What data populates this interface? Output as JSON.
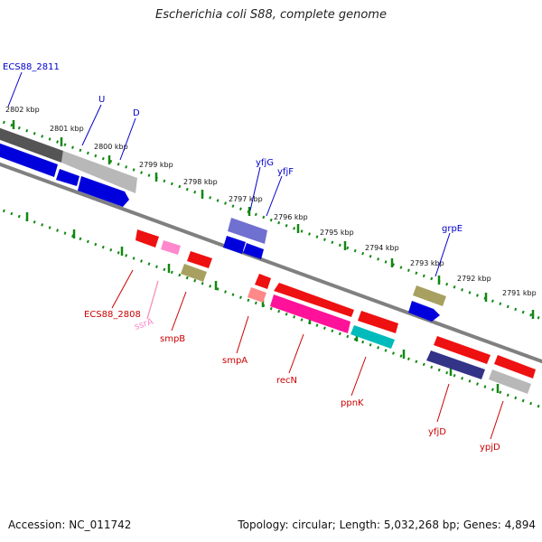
{
  "title": "Escherichia coli S88, complete genome",
  "footer": {
    "accession": "Accession: NC_011742",
    "summary": "Topology: circular; Length: 5,032,268 bp; Genes: 4,894"
  },
  "colors": {
    "forward_label": "#0000cc",
    "reverse_label": "#cc0000",
    "tick": "#118811",
    "backbone": "#808080"
  },
  "kbp_labels": [
    "2802 kbp",
    "2801 kbp",
    "2800 kbp",
    "2799 kbp",
    "2798 kbp",
    "2797 kbp",
    "2796 kbp",
    "2795 kbp",
    "2794 kbp",
    "2793 kbp",
    "2792 kbp",
    "2791 kbp"
  ],
  "forward_labels": [
    "ECS88_2811",
    "U",
    "D",
    "yfjG",
    "yfjF",
    "grpE"
  ],
  "reverse_labels": [
    "ECS88_2808",
    "ssrA",
    "smpB",
    "smpA",
    "recN",
    "ppnK",
    "yfjD",
    "ypjD"
  ]
}
